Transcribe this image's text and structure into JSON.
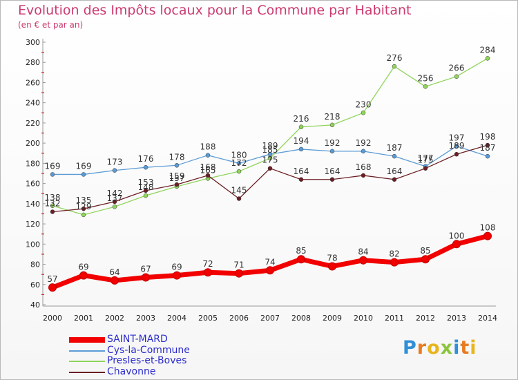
{
  "title": "Evolution des Impôts locaux pour la Commune par Habitant",
  "subtitle": "(en € et par an)",
  "logo": {
    "letters": [
      "P",
      "r",
      "o",
      "x",
      "i",
      "t",
      "i"
    ],
    "colors": [
      "#2f8fd8",
      "#e87b1f",
      "#e8b51f",
      "#8cc43c",
      "#2f8fd8",
      "#e87b1f",
      "#e8b51f"
    ]
  },
  "chart_data": {
    "type": "line",
    "title": "Evolution des Impôts locaux pour la Commune par Habitant",
    "xlabel": "",
    "ylabel": "",
    "x": [
      2000,
      2001,
      2002,
      2003,
      2004,
      2005,
      2006,
      2007,
      2008,
      2009,
      2010,
      2011,
      2012,
      2013,
      2014
    ],
    "ylim": [
      40,
      300
    ],
    "yticks": [
      40,
      60,
      80,
      100,
      120,
      140,
      160,
      180,
      200,
      220,
      240,
      260,
      280,
      300
    ],
    "grid": false,
    "legend_position": "bottom-left",
    "series": [
      {
        "name": "Cys-la-Commune",
        "color": "#5b9bd5",
        "values": [
          169,
          169,
          173,
          176,
          178,
          188,
          180,
          189,
          194,
          192,
          192,
          187,
          177,
          197,
          187
        ]
      },
      {
        "name": "Presles-et-Boves",
        "color": "#8fd45b",
        "values": [
          138,
          129,
          137,
          148,
          157,
          165,
          172,
          185,
          216,
          218,
          230,
          276,
          256,
          266,
          284
        ]
      },
      {
        "name": "Chavonne",
        "color": "#6b1f24",
        "values": [
          132,
          135,
          142,
          153,
          159,
          168,
          145,
          175,
          164,
          164,
          168,
          164,
          175,
          189,
          198
        ]
      },
      {
        "name": "SAINT-MARD",
        "color": "#f20000",
        "values": [
          57,
          69,
          64,
          67,
          69,
          72,
          71,
          74,
          85,
          78,
          84,
          82,
          85,
          100,
          108
        ]
      }
    ]
  }
}
